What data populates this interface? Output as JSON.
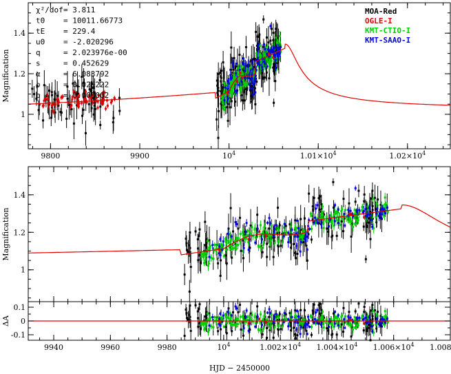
{
  "chart_data": [
    {
      "type": "scatter",
      "name": "top-panel",
      "ylabel": "Magnification",
      "xlim": [
        9775,
        10248
      ],
      "ylim": [
        0.83,
        1.55
      ],
      "xticks": [
        {
          "value": 9800,
          "label": "9800"
        },
        {
          "value": 9900,
          "label": "9900"
        },
        {
          "value": 10000,
          "label": "10^4"
        },
        {
          "value": 10100,
          "label": "1.01×10^4"
        },
        {
          "value": 10200,
          "label": "1.02×10^4"
        }
      ],
      "yticks": [
        {
          "value": 1.0,
          "label": "1"
        },
        {
          "value": 1.2,
          "label": "1.2"
        },
        {
          "value": 1.4,
          "label": "1.4"
        }
      ],
      "params": [
        {
          "name": "χ²/dof",
          "value": "3.811"
        },
        {
          "name": "t0",
          "value": "10011.66773"
        },
        {
          "name": "tE",
          "value": "229.4"
        },
        {
          "name": "u0",
          "value": "-2.020296"
        },
        {
          "name": "q",
          "value": "2.023976e-00"
        },
        {
          "name": "s",
          "value": "0.452629"
        },
        {
          "name": "α",
          "value": "6.083792"
        },
        {
          "name": "ρ",
          "value": "0.026222"
        },
        {
          "name": "b",
          "value": "0.000002"
        }
      ],
      "legend": [
        {
          "label": "MOA-Red",
          "color": "#000000"
        },
        {
          "label": "OGLE-I",
          "color": "#e00000"
        },
        {
          "label": "KMT-CTIO-I",
          "color": "#00d000"
        },
        {
          "label": "KMT-SAAO-I",
          "color": "#0000e0"
        }
      ]
    },
    {
      "type": "scatter",
      "name": "zoom-panel",
      "ylabel": "Magnification",
      "xlim": [
        9931,
        10080
      ],
      "ylim": [
        0.83,
        1.55
      ],
      "yticks": [
        {
          "value": 1.0,
          "label": "1"
        },
        {
          "value": 1.2,
          "label": "1.2"
        },
        {
          "value": 1.4,
          "label": "1.4"
        }
      ]
    },
    {
      "type": "scatter",
      "name": "residual-panel",
      "ylabel": "ΔA",
      "xlabel": "HJD − 2450000",
      "xlim": [
        9931,
        10080
      ],
      "ylim": [
        -0.14,
        0.14
      ],
      "yticks": [
        {
          "value": 0.1,
          "label": "0.1"
        },
        {
          "value": 0.0,
          "label": "0"
        },
        {
          "value": -0.1,
          "label": "-0.1"
        }
      ],
      "xticks": [
        {
          "value": 9940,
          "label": "9940"
        },
        {
          "value": 9960,
          "label": "9960"
        },
        {
          "value": 9980,
          "label": "9980"
        },
        {
          "value": 10000,
          "label": "10^4"
        },
        {
          "value": 10020,
          "label": "1.002×10^4"
        },
        {
          "value": 10040,
          "label": "1.004×10^4"
        },
        {
          "value": 10060,
          "label": "1.006×10^4"
        },
        {
          "value": 10080,
          "label": "1.008×10^4"
        }
      ]
    }
  ],
  "colors": {
    "moa": "#000000",
    "ogle": "#e00000",
    "kmtc": "#00d000",
    "kmts": "#0000e0",
    "model": "#e00000"
  }
}
